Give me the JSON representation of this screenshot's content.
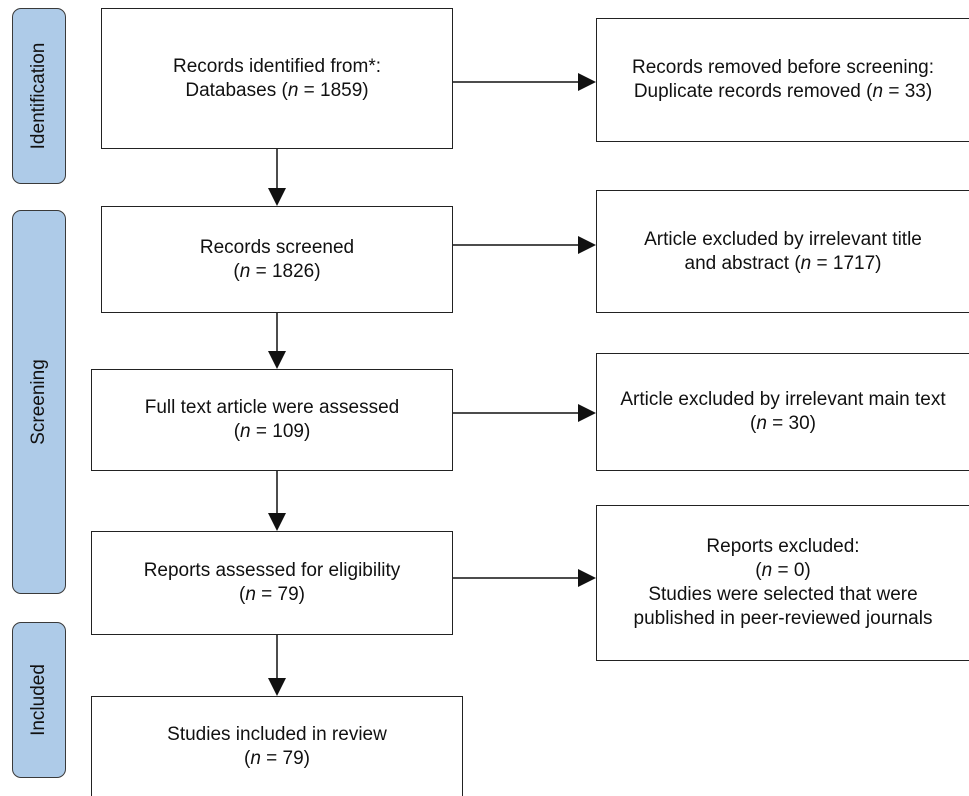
{
  "phases": {
    "identification": "Identification",
    "screening": "Screening",
    "included": "Included"
  },
  "boxes": {
    "identified": {
      "line1": "Records identified from*:",
      "prefix": "Databases (",
      "n": "n",
      "suffix": " = 1859)"
    },
    "removed": {
      "line1": "Records removed before screening:",
      "prefix": "Duplicate records removed (",
      "n": "n",
      "suffix": " = 33)"
    },
    "screened": {
      "line1": "Records screened",
      "prefix": "(",
      "n": "n",
      "suffix": " = 1826)"
    },
    "excluded_title": {
      "line1": "Article excluded by irrelevant title",
      "prefix": "and abstract (",
      "n": "n",
      "suffix": " = 1717)"
    },
    "fulltext": {
      "line1": "Full text article were assessed",
      "prefix": "(",
      "n": "n",
      "suffix": " = 109)"
    },
    "excluded_main": {
      "line1": "Article excluded by irrelevant main text",
      "prefix": "(",
      "n": "n",
      "suffix": " = 30)"
    },
    "eligibility": {
      "line1": "Reports assessed for eligibility",
      "prefix": "(",
      "n": "n",
      "suffix": " = 79)"
    },
    "reports_excluded": {
      "line1": "Reports excluded:",
      "prefix": "(",
      "n": "n",
      "suffix": " = 0)",
      "line3": "Studies were selected that were",
      "line4": "published in peer-reviewed journals"
    },
    "included": {
      "line1": "Studies included in review",
      "prefix": "(",
      "n": "n",
      "suffix": " = 79)"
    }
  }
}
